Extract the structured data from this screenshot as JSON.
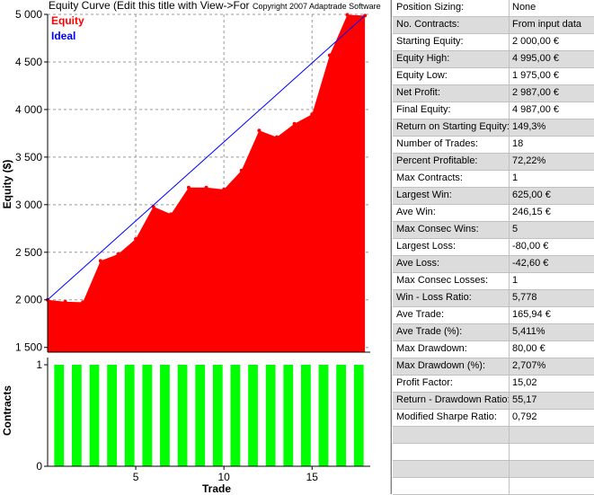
{
  "chart": {
    "title": "Equity Curve (Edit this title with View->For",
    "copyright": "Copyright 2007  Adaptrade Software",
    "legend": [
      {
        "label": "Equity",
        "color": "#ff0000"
      },
      {
        "label": "Ideal",
        "color": "#0000ff"
      }
    ],
    "ylabel_equity": "Equity ($)",
    "ylabel_contracts": "Contracts",
    "xlabel": "Trade",
    "equity_ticks": [
      {
        "v": 5000,
        "label": "5 000"
      },
      {
        "v": 4500,
        "label": "4 500"
      },
      {
        "v": 4000,
        "label": "4 000"
      },
      {
        "v": 3500,
        "label": "3 500"
      },
      {
        "v": 3000,
        "label": "3 000"
      },
      {
        "v": 2500,
        "label": "2 500"
      },
      {
        "v": 2000,
        "label": "2 000"
      },
      {
        "v": 1500,
        "label": "1 500"
      }
    ],
    "contract_ticks": [
      {
        "v": 1,
        "label": "1"
      },
      {
        "v": 0,
        "label": "0"
      }
    ],
    "x_ticks": [
      {
        "v": 5,
        "label": "5"
      },
      {
        "v": 10,
        "label": "10"
      },
      {
        "v": 15,
        "label": "15"
      }
    ]
  },
  "chart_data": [
    {
      "type": "area",
      "title": "Equity Curve (Edit this title with View->For",
      "xlabel": "Trade",
      "ylabel": "Equity ($)",
      "xlim": [
        0,
        18.3
      ],
      "ylim": [
        1450,
        5000
      ],
      "grid": true,
      "legend_position": "top-left",
      "series": [
        {
          "name": "Equity",
          "color": "#ff0000",
          "x": [
            0,
            1,
            2,
            3,
            4,
            5,
            6,
            7,
            8,
            9,
            10,
            11,
            12,
            13,
            14,
            15,
            16,
            17,
            18
          ],
          "values": [
            2000,
            1980,
            1975,
            2410,
            2480,
            2640,
            2980,
            2900,
            3180,
            3180,
            3160,
            3360,
            3780,
            3710,
            3850,
            3950,
            4570,
            4995,
            4987
          ]
        },
        {
          "name": "Ideal",
          "color": "#0000ff",
          "x": [
            0,
            18
          ],
          "values": [
            2000,
            4987
          ]
        }
      ]
    },
    {
      "type": "bar",
      "xlabel": "Trade",
      "ylabel": "Contracts",
      "ylim": [
        0,
        1
      ],
      "series": [
        {
          "color": "#00ff00",
          "x": [
            1,
            2,
            3,
            4,
            5,
            6,
            7,
            8,
            9,
            10,
            11,
            12,
            13,
            14,
            15,
            16,
            17,
            18
          ],
          "values": [
            1,
            1,
            1,
            1,
            1,
            1,
            1,
            1,
            1,
            1,
            1,
            1,
            1,
            1,
            1,
            1,
            1,
            1
          ]
        }
      ]
    }
  ],
  "stats": [
    {
      "label": "Position Sizing:",
      "value": "None"
    },
    {
      "label": "No. Contracts:",
      "value": "From input data"
    },
    {
      "label": "Starting Equity:",
      "value": "2 000,00 €"
    },
    {
      "label": "Equity High:",
      "value": "4 995,00 €"
    },
    {
      "label": "Equity Low:",
      "value": "1 975,00 €"
    },
    {
      "label": "Net Profit:",
      "value": "2 987,00 €"
    },
    {
      "label": "Final Equity:",
      "value": "4 987,00 €"
    },
    {
      "label": "Return on Starting Equity:",
      "value": "149,3%"
    },
    {
      "label": "Number of Trades:",
      "value": "18"
    },
    {
      "label": "Percent Profitable:",
      "value": "72,22%"
    },
    {
      "label": "Max Contracts:",
      "value": "1"
    },
    {
      "label": "Largest Win:",
      "value": "625,00 €"
    },
    {
      "label": "Ave Win:",
      "value": "246,15 €"
    },
    {
      "label": "Max Consec Wins:",
      "value": "5"
    },
    {
      "label": "Largest Loss:",
      "value": "-80,00 €"
    },
    {
      "label": "Ave Loss:",
      "value": "-42,60 €"
    },
    {
      "label": "Max Consec Losses:",
      "value": "1"
    },
    {
      "label": "Win - Loss Ratio:",
      "value": "5,778"
    },
    {
      "label": "Ave Trade:",
      "value": "165,94 €"
    },
    {
      "label": "Ave Trade (%):",
      "value": "5,411%"
    },
    {
      "label": "Max Drawdown:",
      "value": "80,00 €"
    },
    {
      "label": "Max Drawdown (%):",
      "value": "2,707%"
    },
    {
      "label": "Profit Factor:",
      "value": "15,02"
    },
    {
      "label": "Return - Drawdown Ratio:",
      "value": "55,17"
    },
    {
      "label": "Modified Sharpe Ratio:",
      "value": "0,792"
    },
    {
      "label": "",
      "value": ""
    },
    {
      "label": "",
      "value": ""
    },
    {
      "label": "",
      "value": ""
    },
    {
      "label": "",
      "value": ""
    }
  ]
}
